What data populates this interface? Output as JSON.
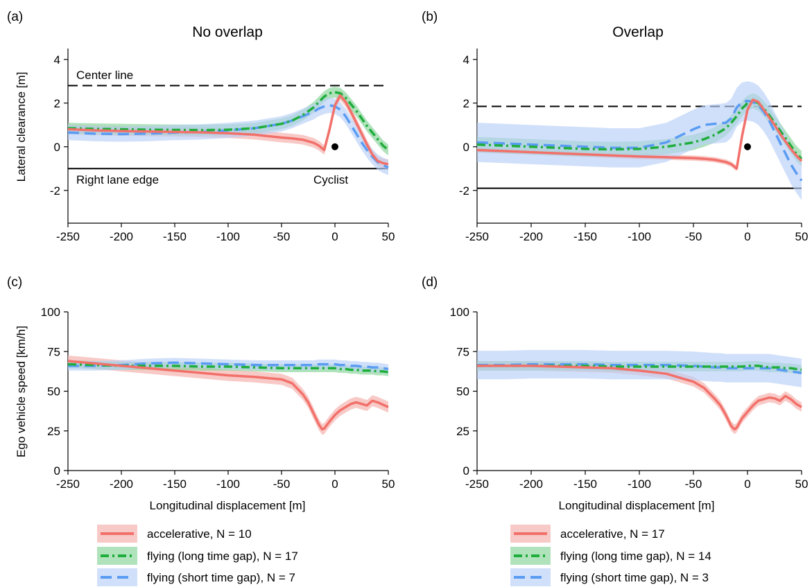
{
  "colors": {
    "accelerative": "#f2706a",
    "accelerative_band": "#f6b8b4",
    "long_gap": "#1fae3c",
    "long_gap_band": "#8ed6a0",
    "short_gap": "#5b9cf3",
    "short_gap_band": "#b8d0f8"
  },
  "chart_data": [
    {
      "panel": "(a)",
      "title": "No overlap",
      "type": "line",
      "ylabel": "Lateral clearance [m]",
      "xlabel": "",
      "xlim": [
        -250,
        50
      ],
      "ylim": [
        -3.5,
        4.5
      ],
      "xticks": [
        "-250",
        "-200",
        "-150",
        "-100",
        "-50",
        "0",
        "50"
      ],
      "yticks": [
        "-2",
        "0",
        "2",
        "4"
      ],
      "annotations": {
        "center_line": "Center line",
        "right_lane_edge": "Right lane edge",
        "cyclist": "Cyclist"
      },
      "center_line_y": 2.8,
      "lane_edge_y": -1.0,
      "cyclist_point": [
        0,
        0
      ],
      "x": [
        -250,
        -225,
        -200,
        -175,
        -150,
        -125,
        -100,
        -75,
        -50,
        -40,
        -30,
        -20,
        -15,
        -10,
        -5,
        0,
        5,
        10,
        15,
        20,
        25,
        30,
        35,
        40,
        45,
        50
      ],
      "series": [
        {
          "name": "accelerative",
          "values": [
            0.8,
            0.75,
            0.72,
            0.7,
            0.68,
            0.66,
            0.62,
            0.55,
            0.42,
            0.38,
            0.32,
            0.18,
            0.05,
            -0.15,
            0.8,
            1.9,
            2.35,
            2.05,
            1.6,
            1.1,
            0.6,
            0.1,
            -0.35,
            -0.65,
            -0.75,
            -0.8
          ],
          "band": 0.22
        },
        {
          "name": "flying (long time gap)",
          "values": [
            0.85,
            0.82,
            0.8,
            0.78,
            0.77,
            0.76,
            0.78,
            0.85,
            1.05,
            1.2,
            1.45,
            1.8,
            2.05,
            2.3,
            2.45,
            2.5,
            2.45,
            2.25,
            1.95,
            1.65,
            1.3,
            0.95,
            0.65,
            0.35,
            0.05,
            -0.15
          ],
          "band": 0.25
        },
        {
          "name": "flying (short time gap)",
          "values": [
            0.65,
            0.6,
            0.58,
            0.6,
            0.65,
            0.68,
            0.75,
            0.85,
            1.05,
            1.2,
            1.4,
            1.6,
            1.75,
            1.85,
            1.9,
            1.85,
            1.7,
            1.4,
            1.0,
            0.6,
            0.2,
            -0.15,
            -0.45,
            -0.7,
            -0.85,
            -0.95
          ],
          "band": 0.35
        }
      ]
    },
    {
      "panel": "(b)",
      "title": "Overlap",
      "type": "line",
      "ylabel": "",
      "xlabel": "",
      "xlim": [
        -250,
        50
      ],
      "ylim": [
        -3.5,
        4.5
      ],
      "xticks": [
        "-250",
        "-200",
        "-150",
        "-100",
        "-50",
        "0",
        "50"
      ],
      "yticks": [
        "-2",
        "0",
        "2",
        "4"
      ],
      "center_line_y": 1.85,
      "lane_edge_y": -1.9,
      "cyclist_point": [
        0,
        0
      ],
      "x": [
        -250,
        -225,
        -200,
        -175,
        -150,
        -125,
        -100,
        -75,
        -50,
        -40,
        -30,
        -20,
        -15,
        -10,
        -5,
        0,
        5,
        10,
        15,
        20,
        25,
        30,
        35,
        40,
        45,
        50
      ],
      "series": [
        {
          "name": "accelerative",
          "values": [
            -0.15,
            -0.2,
            -0.25,
            -0.3,
            -0.35,
            -0.4,
            -0.45,
            -0.48,
            -0.52,
            -0.55,
            -0.6,
            -0.7,
            -0.8,
            -1.0,
            0.5,
            1.7,
            2.15,
            2.05,
            1.7,
            1.35,
            1.0,
            0.6,
            0.25,
            -0.1,
            -0.4,
            -0.65
          ],
          "band": 0.12
        },
        {
          "name": "flying (long time gap)",
          "values": [
            0.1,
            0.05,
            0.0,
            -0.05,
            -0.1,
            -0.12,
            -0.1,
            0.0,
            0.2,
            0.35,
            0.55,
            0.85,
            1.1,
            1.4,
            1.75,
            2.0,
            2.1,
            2.0,
            1.75,
            1.45,
            1.1,
            0.75,
            0.4,
            0.05,
            -0.3,
            -0.55
          ],
          "band": 0.35
        },
        {
          "name": "flying (short time gap)",
          "values": [
            0.2,
            0.15,
            0.1,
            0.05,
            0.0,
            -0.05,
            -0.05,
            0.2,
            0.8,
            1.0,
            1.05,
            1.1,
            1.3,
            1.8,
            2.05,
            2.1,
            2.05,
            1.9,
            1.6,
            1.2,
            0.7,
            0.2,
            -0.3,
            -0.8,
            -1.2,
            -1.55
          ],
          "band": 0.9
        }
      ]
    },
    {
      "panel": "(c)",
      "title": "",
      "type": "line",
      "ylabel": "Ego vehicle speed [km/h]",
      "xlabel": "Longitudinal displacement [m]",
      "xlim": [
        -250,
        50
      ],
      "ylim": [
        0,
        100
      ],
      "xticks": [
        "-250",
        "-200",
        "-150",
        "-100",
        "-50",
        "0",
        "50"
      ],
      "yticks": [
        "0",
        "25",
        "50",
        "75",
        "100"
      ],
      "x": [
        -250,
        -225,
        -200,
        -175,
        -150,
        -125,
        -100,
        -75,
        -50,
        -40,
        -30,
        -25,
        -20,
        -15,
        -12,
        -10,
        -5,
        0,
        5,
        10,
        15,
        20,
        25,
        30,
        35,
        40,
        45,
        50
      ],
      "series": [
        {
          "name": "accelerative",
          "values": [
            69,
            67.5,
            66,
            64.5,
            63,
            61.5,
            60,
            59,
            57.5,
            55,
            48,
            43,
            36,
            29,
            26,
            26.5,
            31,
            35,
            38,
            40,
            42,
            43,
            42,
            41,
            44,
            43,
            41.5,
            40
          ],
          "band": 3.5
        },
        {
          "name": "flying (long time gap)",
          "values": [
            67,
            66.5,
            66,
            66,
            66,
            65.5,
            65.5,
            65,
            64.5,
            64.5,
            64.5,
            64.5,
            64.5,
            64.5,
            64.5,
            64.5,
            64.5,
            64.5,
            64,
            64,
            63.5,
            63.5,
            63,
            63,
            63,
            62.5,
            62.5,
            62
          ],
          "band": 2.5
        },
        {
          "name": "flying (short time gap)",
          "values": [
            66,
            66,
            66.5,
            67.5,
            68,
            67.5,
            67,
            66.5,
            66.5,
            66.5,
            66.5,
            66.5,
            66.5,
            67,
            67,
            67,
            67,
            67,
            66.5,
            66.5,
            66,
            66,
            65.5,
            65.5,
            65,
            65,
            64.5,
            64
          ],
          "band": 3
        }
      ]
    },
    {
      "panel": "(d)",
      "title": "",
      "type": "line",
      "ylabel": "",
      "xlabel": "Longitudinal displacement [m]",
      "xlim": [
        -250,
        50
      ],
      "ylim": [
        0,
        100
      ],
      "xticks": [
        "-250",
        "-200",
        "-150",
        "-100",
        "-50",
        "0",
        "50"
      ],
      "yticks": [
        "0",
        "25",
        "50",
        "75",
        "100"
      ],
      "x": [
        -250,
        -225,
        -200,
        -175,
        -150,
        -125,
        -100,
        -75,
        -50,
        -40,
        -30,
        -25,
        -20,
        -15,
        -12,
        -10,
        -5,
        0,
        5,
        10,
        15,
        20,
        25,
        30,
        35,
        40,
        45,
        50
      ],
      "series": [
        {
          "name": "accelerative",
          "values": [
            66,
            66,
            66,
            65.5,
            65,
            64.5,
            63,
            61,
            56,
            52,
            45,
            41,
            35,
            28,
            26,
            27,
            33,
            37,
            41,
            44,
            45,
            46,
            45.5,
            44,
            47,
            45,
            42,
            40
          ],
          "band": 3
        },
        {
          "name": "flying (long time gap)",
          "values": [
            66,
            66,
            66,
            66,
            66,
            65.5,
            65.5,
            65.5,
            65.5,
            65.5,
            65.5,
            65.5,
            65.5,
            65.5,
            65.5,
            65.5,
            65.5,
            66,
            66,
            66,
            65.5,
            65,
            65,
            65,
            64.5,
            64.5,
            64,
            63.5
          ],
          "band": 3
        },
        {
          "name": "flying (short time gap)",
          "values": [
            66.5,
            66.5,
            67,
            67,
            67,
            66.5,
            66.5,
            66.5,
            66,
            65.5,
            65,
            65,
            64.5,
            64.5,
            64.5,
            64.5,
            64.5,
            64.5,
            64.5,
            64.5,
            64.5,
            64.5,
            64,
            63.5,
            63,
            62.5,
            62,
            61.5
          ],
          "band": 9
        }
      ]
    }
  ],
  "legends": [
    {
      "items": [
        {
          "key": "accelerative",
          "label": "accelerative, N =  10"
        },
        {
          "key": "long",
          "label": "flying (long time gap), N =  17"
        },
        {
          "key": "short",
          "label": "flying (short time gap), N =  7"
        }
      ]
    },
    {
      "items": [
        {
          "key": "accelerative",
          "label": "accelerative, N =  17"
        },
        {
          "key": "long",
          "label": "flying (long time gap), N =  14"
        },
        {
          "key": "short",
          "label": "flying (short time gap), N =  3"
        }
      ]
    }
  ]
}
